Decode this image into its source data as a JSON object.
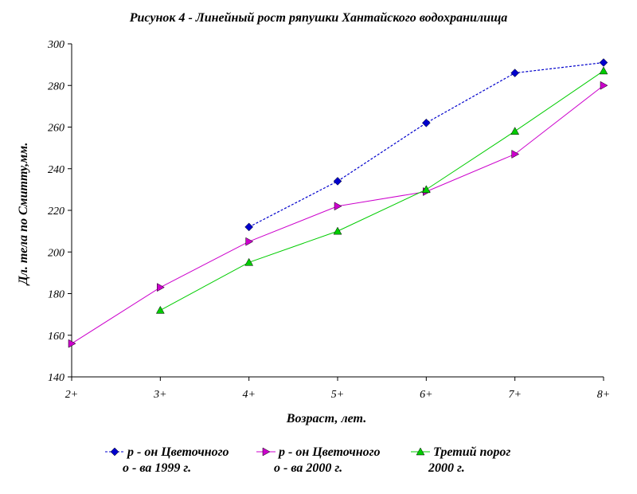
{
  "chart_data": {
    "type": "line",
    "title": "Рисунок 4 - Линейный рост ряпушки Хантайского водохранилища",
    "xlabel": "Возраст, лет.",
    "ylabel": "Дл. тела по Смитту,мм.",
    "categories": [
      "2+",
      "3+",
      "4+",
      "5+",
      "6+",
      "7+",
      "8+"
    ],
    "ylim": [
      140,
      300
    ],
    "yticks": [
      140,
      160,
      180,
      200,
      220,
      240,
      260,
      280,
      300
    ],
    "grid": false,
    "legend": "bottom",
    "series": [
      {
        "name": "р - он Цветочного о - ва 1999 г.",
        "legend_lines": [
          "р - он Цветочного",
          "о - ва 1999 г."
        ],
        "values": [
          null,
          null,
          212,
          234,
          262,
          286,
          291
        ],
        "color": "#0000cc",
        "marker": "diamond",
        "dashed": true
      },
      {
        "name": "р - он Цветочного о - ва 2000 г.",
        "legend_lines": [
          "р - он Цветочного",
          "о - ва 2000 г."
        ],
        "values": [
          156,
          183,
          205,
          222,
          229,
          247,
          280
        ],
        "color": "#cc00cc",
        "marker": "triangle-right",
        "dashed": false
      },
      {
        "name": "Третий порог 2000 г.",
        "legend_lines": [
          "Третий порог",
          "2000 г."
        ],
        "values": [
          null,
          172,
          195,
          210,
          230,
          258,
          287
        ],
        "color": "#00cc00",
        "marker": "triangle-up",
        "dashed": false
      }
    ]
  }
}
